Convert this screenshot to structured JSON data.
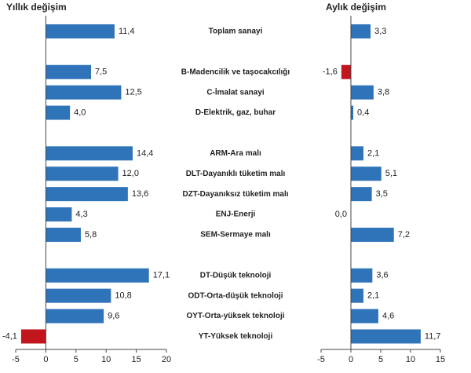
{
  "chart_data": [
    {
      "type": "bar",
      "orientation": "horizontal",
      "title": "Yıllık değişim",
      "categories": [
        "Toplam sanayi",
        null,
        "B-Madencilik ve taşocakcılığı",
        "C-İmalat sanayi",
        "D-Elektrik, gaz, buhar",
        null,
        "ARM-Ara malı",
        "DLT-Dayanıklı tüketim malı",
        "DZT-Dayanıksız tüketim malı",
        "ENJ-Enerji",
        "SEM-Sermaye malı",
        null,
        "DT-Düşük teknoloji",
        "ODT-Orta-düşük teknoloji",
        "OYT-Orta-yüksek teknoloji",
        "YT-Yüksek teknoloji"
      ],
      "values": [
        11.4,
        null,
        7.5,
        12.5,
        4.0,
        null,
        14.4,
        12.0,
        13.6,
        4.3,
        5.8,
        null,
        17.1,
        10.8,
        9.6,
        -4.1
      ],
      "value_labels": [
        "11,4",
        null,
        "7,5",
        "12,5",
        "4,0",
        null,
        "14,4",
        "12,0",
        "13,6",
        "4,3",
        "5,8",
        null,
        "17,1",
        "10,8",
        "9,6",
        "-4,1"
      ],
      "color": "#2f73b8",
      "negative_color": "#c0161c",
      "xlim": [
        -5,
        20
      ],
      "xticks": [
        -5,
        0,
        5,
        10,
        15,
        20
      ]
    },
    {
      "type": "bar",
      "orientation": "horizontal",
      "title": "Aylık değişim",
      "values": [
        3.3,
        null,
        -1.6,
        3.8,
        0.4,
        null,
        2.1,
        5.1,
        3.5,
        0.0,
        7.2,
        null,
        3.6,
        2.1,
        4.6,
        11.7
      ],
      "value_labels": [
        "3,3",
        null,
        "-1,6",
        "3,8",
        "0,4",
        null,
        "2,1",
        "5,1",
        "3,5",
        "0,0",
        "7,2",
        null,
        "3,6",
        "2,1",
        "4,6",
        "11,7"
      ],
      "color": "#2f73b8",
      "negative_color": "#c0161c",
      "xlim": [
        -5,
        15
      ],
      "xticks": [
        -5,
        0,
        5,
        10,
        15
      ]
    }
  ]
}
